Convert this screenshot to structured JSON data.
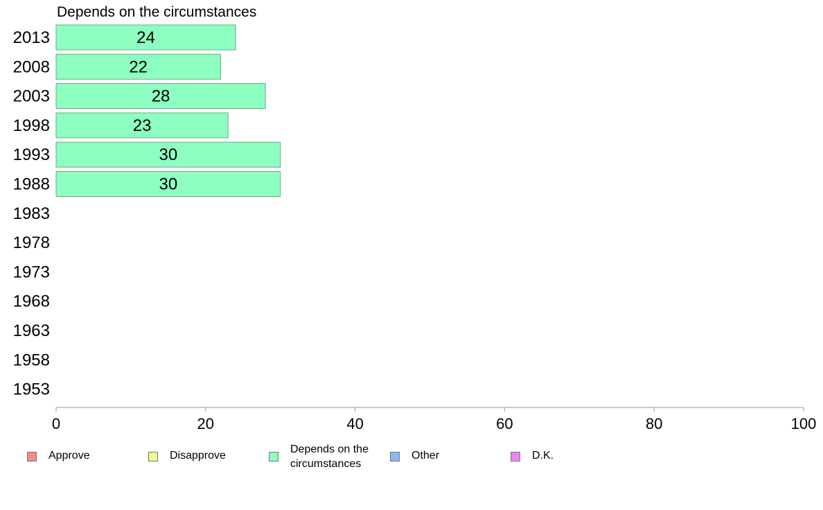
{
  "chart_data": {
    "type": "bar",
    "orientation": "horizontal",
    "title": "Depends on the circumstances",
    "categories": [
      "2013",
      "2008",
      "2003",
      "1998",
      "1993",
      "1988",
      "1983",
      "1978",
      "1973",
      "1968",
      "1963",
      "1958",
      "1953"
    ],
    "series": [
      {
        "name": "Depends on the circumstances",
        "values": [
          24,
          22,
          28,
          23,
          30,
          30,
          null,
          null,
          null,
          null,
          null,
          null,
          null
        ],
        "color": "#8dffc0"
      }
    ],
    "data_labels": [
      "24",
      "22",
      "28",
      "23",
      "30",
      "30",
      "",
      "",
      "",
      "",
      "",
      "",
      ""
    ],
    "xlim": [
      0,
      100
    ],
    "xticks": [
      "0",
      "20",
      "40",
      "60",
      "80",
      "100"
    ],
    "xlabel": "",
    "ylabel": "",
    "grid": false,
    "legend_position": "bottom"
  },
  "legend": {
    "items": [
      {
        "label": "Approve",
        "color": "#f58b8b"
      },
      {
        "label": "Disapprove",
        "color": "#eeff8b"
      },
      {
        "label": "Depends on the\ncircumstances",
        "color": "#8dffc0"
      },
      {
        "label": "Other",
        "color": "#8bb8f5"
      },
      {
        "label": "D.K.",
        "color": "#ef85f5"
      }
    ]
  }
}
